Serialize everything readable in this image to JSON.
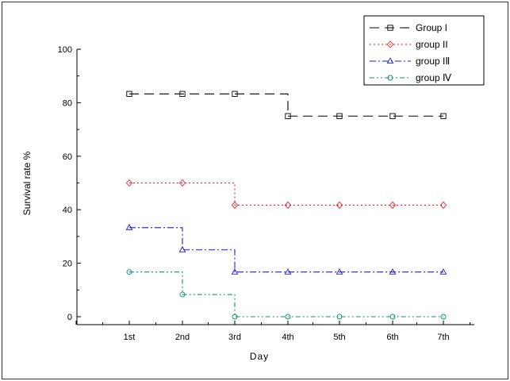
{
  "chart_data": {
    "type": "line",
    "step": true,
    "xlabel": "Day",
    "ylabel": "Survival rate %",
    "categories": [
      "1st",
      "2nd",
      "3rd",
      "4th",
      "5th",
      "6th",
      "7th"
    ],
    "ylim": [
      0,
      100
    ],
    "yticks": [
      0,
      20,
      40,
      60,
      80,
      100
    ],
    "legend_position": "top-right",
    "series": [
      {
        "name": "Group I",
        "color": "#000000",
        "dash": "12,7",
        "marker": "square",
        "values": [
          83.3,
          83.3,
          83.3,
          75,
          75,
          75,
          75
        ]
      },
      {
        "name": "group II",
        "color": "#e8222a",
        "dash": "2,3",
        "marker": "diamond",
        "values": [
          50,
          50,
          41.7,
          41.7,
          41.7,
          41.7,
          41.7
        ]
      },
      {
        "name": "group IⅡ",
        "color": "#1b1bd6",
        "dash": "8,3,2,3",
        "marker": "triangle",
        "values": [
          33.3,
          25,
          16.7,
          16.7,
          16.7,
          16.7,
          16.7
        ]
      },
      {
        "name": "group Ⅳ",
        "color": "#0f8f6f",
        "dash": "6,3,2,3,2,3",
        "marker": "circle",
        "values": [
          16.7,
          8.3,
          0,
          0,
          0,
          0,
          0
        ]
      }
    ]
  }
}
